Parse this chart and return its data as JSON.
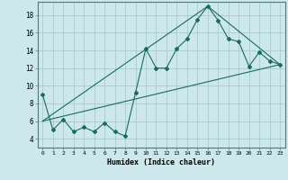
{
  "xlabel": "Humidex (Indice chaleur)",
  "bg_color": "#cce8ec",
  "grid_color": "#aacccc",
  "line_color": "#1a6b5a",
  "xlim": [
    -0.5,
    23.5
  ],
  "ylim": [
    3.0,
    19.5
  ],
  "yticks": [
    4,
    6,
    8,
    10,
    12,
    14,
    16,
    18
  ],
  "xticks": [
    0,
    1,
    2,
    3,
    4,
    5,
    6,
    7,
    8,
    9,
    10,
    11,
    12,
    13,
    14,
    15,
    16,
    17,
    18,
    19,
    20,
    21,
    22,
    23
  ],
  "series1_x": [
    0,
    1,
    2,
    3,
    4,
    5,
    6,
    7,
    8,
    9,
    10,
    11,
    12,
    13,
    14,
    15,
    16,
    17,
    18,
    19,
    20,
    21,
    22,
    23
  ],
  "series1_y": [
    9.0,
    5.0,
    6.2,
    4.8,
    5.3,
    4.8,
    5.8,
    4.8,
    4.3,
    9.2,
    14.2,
    12.0,
    12.0,
    14.2,
    15.3,
    17.5,
    19.0,
    17.4,
    15.3,
    15.0,
    12.2,
    13.8,
    12.8,
    12.4
  ],
  "series2_x": [
    0,
    23
  ],
  "series2_y": [
    6.0,
    12.4
  ],
  "series3_x": [
    0,
    16,
    23
  ],
  "series3_y": [
    6.0,
    19.0,
    12.4
  ]
}
